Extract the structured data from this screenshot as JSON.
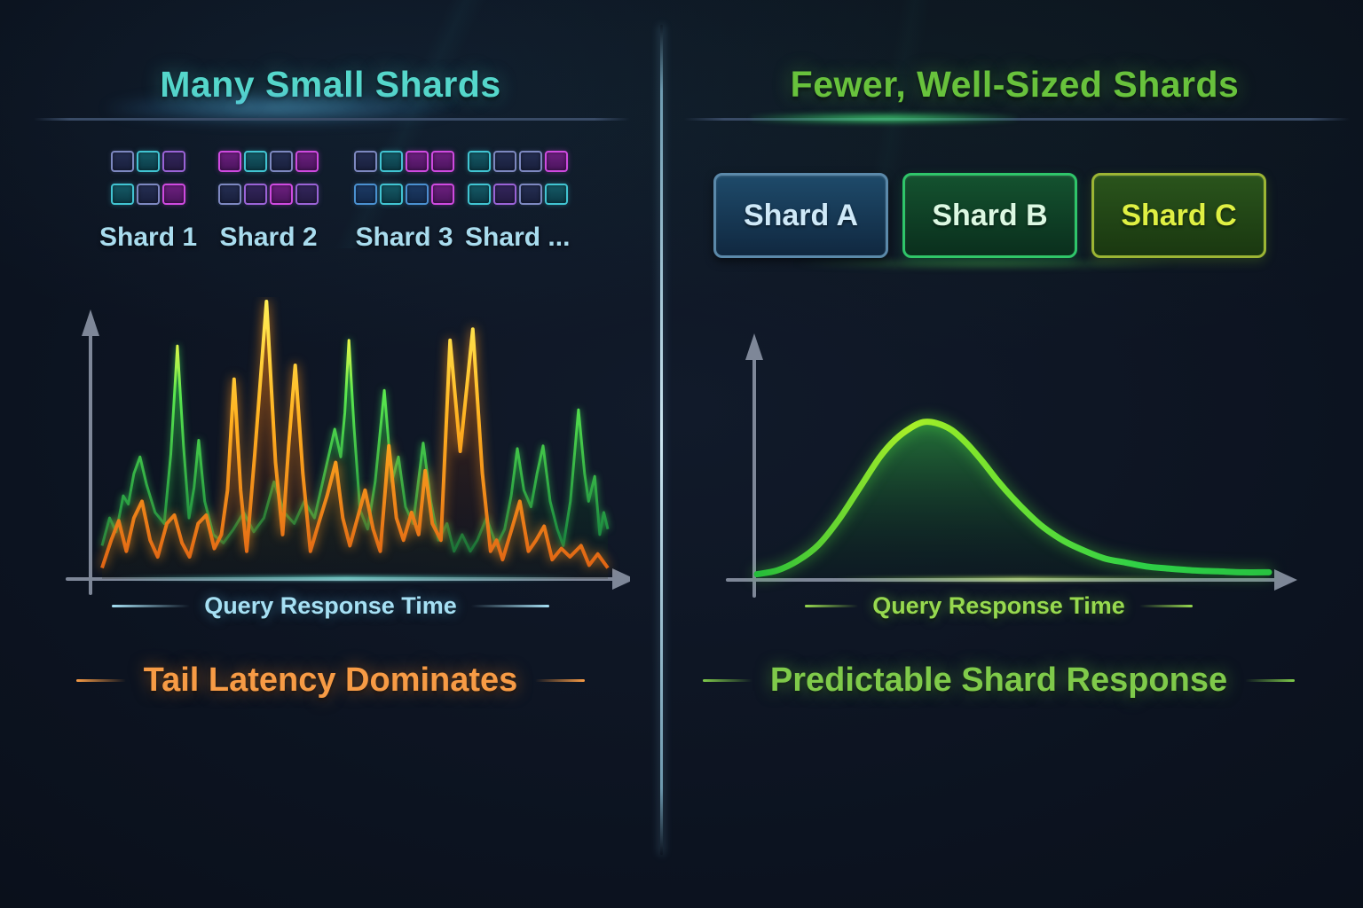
{
  "left_panel": {
    "title": "Many Small Shards",
    "shard_groups": [
      {
        "label": "Shard 1",
        "squares": [
          [
            "navy",
            "teal",
            "purple"
          ],
          [
            "teal",
            "navy",
            "magenta"
          ]
        ]
      },
      {
        "label": "Shard 2",
        "squares": [
          [
            "magenta",
            "teal",
            "navy",
            "magenta"
          ],
          [
            "navy",
            "purple",
            "magenta",
            "purple"
          ]
        ]
      },
      {
        "label": "Shard 3",
        "squares": [
          [
            "navy",
            "teal",
            "magenta",
            "magenta"
          ],
          [
            "blue",
            "teal",
            "blue",
            "magenta"
          ]
        ]
      },
      {
        "label": "Shard ...",
        "squares": [
          [
            "teal",
            "navy",
            "navy",
            "magenta"
          ],
          [
            "teal",
            "purple",
            "navy",
            "teal"
          ]
        ]
      }
    ],
    "axis_label": "Query Response Time",
    "caption": "Tail Latency Dominates"
  },
  "right_panel": {
    "title": "Fewer, Well-Sized Shards",
    "buttons": [
      {
        "label": "Shard A"
      },
      {
        "label": "Shard B"
      },
      {
        "label": "Shard C"
      }
    ],
    "axis_label": "Query Response Time",
    "caption": "Predictable Shard Response"
  },
  "colors": {
    "background": "#0c1320",
    "divider": "#cfeef8",
    "left_title": "#55d7cb",
    "right_title": "#68c23c",
    "shard_label_text": "#a9dcee",
    "left_axis_label": "#a6e0f4",
    "right_axis_label": "#97d94f",
    "left_caption": "#f79b45",
    "right_caption": "#7fca4a",
    "axis_gray": "#7e8798",
    "square_teal_border": "#41c4d2",
    "square_navy_border": "#7d88c0",
    "square_purple_border": "#9a63d6",
    "square_magenta_border": "#cf4ae0",
    "square_blue_border": "#4a90d0",
    "button_a_border": "#5b89aa",
    "button_b_border": "#2fc56a",
    "button_c_border": "#9cb534",
    "green_series": "#3ce052",
    "orange_series": "#ffb020",
    "bell_curve_stroke": "#52e02e",
    "bell_curve_peak": "#aae82a"
  },
  "chart_data": [
    {
      "type": "line",
      "title": "",
      "xlabel": "Query Response Time",
      "ylabel": "",
      "annotation": "Tail Latency Dominates",
      "x_range": [
        0,
        100
      ],
      "y_range": [
        0,
        100
      ],
      "units": "normalized-percent",
      "grid": false,
      "legend": "none",
      "series": [
        {
          "name": "green-shard-latency",
          "color": "#3ce052",
          "points": [
            [
              0,
              12
            ],
            [
              1.5,
              22
            ],
            [
              2.8,
              17
            ],
            [
              4.2,
              30
            ],
            [
              5.2,
              27
            ],
            [
              6.3,
              38
            ],
            [
              7.5,
              44
            ],
            [
              8.8,
              34
            ],
            [
              10.5,
              24
            ],
            [
              12.3,
              20
            ],
            [
              13.6,
              45
            ],
            [
              14.9,
              84
            ],
            [
              16.1,
              48
            ],
            [
              17.2,
              22
            ],
            [
              18.2,
              33
            ],
            [
              19.1,
              50
            ],
            [
              20.3,
              28
            ],
            [
              22,
              16
            ],
            [
              24,
              13
            ],
            [
              26,
              18
            ],
            [
              28,
              24
            ],
            [
              30,
              17
            ],
            [
              32,
              22
            ],
            [
              34,
              35
            ],
            [
              36,
              24
            ],
            [
              38,
              20
            ],
            [
              40,
              28
            ],
            [
              42,
              22
            ],
            [
              44,
              38
            ],
            [
              46,
              54
            ],
            [
              47.2,
              44
            ],
            [
              48,
              60
            ],
            [
              48.8,
              86
            ],
            [
              49.8,
              55
            ],
            [
              51,
              25
            ],
            [
              52.5,
              18
            ],
            [
              54,
              35
            ],
            [
              55.8,
              68
            ],
            [
              57.3,
              35
            ],
            [
              58.6,
              44
            ],
            [
              60,
              26
            ],
            [
              61.5,
              20
            ],
            [
              63.5,
              49
            ],
            [
              65,
              28
            ],
            [
              66.5,
              14
            ],
            [
              68.2,
              20
            ],
            [
              69.6,
              10
            ],
            [
              71.2,
              16
            ],
            [
              72.8,
              10
            ],
            [
              74.2,
              14
            ],
            [
              76,
              22
            ],
            [
              78,
              12
            ],
            [
              79.6,
              18
            ],
            [
              80.9,
              30
            ],
            [
              82.1,
              47
            ],
            [
              83.4,
              32
            ],
            [
              84.8,
              26
            ],
            [
              86,
              38
            ],
            [
              87.2,
              48
            ],
            [
              88.6,
              28
            ],
            [
              90,
              18
            ],
            [
              91.2,
              12
            ],
            [
              92.6,
              28
            ],
            [
              94.2,
              61
            ],
            [
              95.4,
              38
            ],
            [
              96.2,
              28
            ],
            [
              97.4,
              37
            ],
            [
              98.4,
              16
            ],
            [
              99.2,
              24
            ],
            [
              100,
              18
            ]
          ]
        },
        {
          "name": "orange-tail-latency",
          "color": "#ffb020",
          "points": [
            [
              0,
              4
            ],
            [
              1.8,
              14
            ],
            [
              3.3,
              21
            ],
            [
              4.8,
              10
            ],
            [
              6.3,
              22
            ],
            [
              7.9,
              28
            ],
            [
              9.5,
              14
            ],
            [
              11,
              8
            ],
            [
              12.8,
              20
            ],
            [
              14.3,
              23
            ],
            [
              15.8,
              13
            ],
            [
              17.3,
              8
            ],
            [
              19,
              20
            ],
            [
              20.6,
              23
            ],
            [
              22.2,
              11
            ],
            [
              23.6,
              16
            ],
            [
              24.8,
              32
            ],
            [
              26.1,
              72
            ],
            [
              27.4,
              32
            ],
            [
              28.6,
              10
            ],
            [
              30.2,
              45
            ],
            [
              32.5,
              100
            ],
            [
              34.3,
              42
            ],
            [
              35.7,
              16
            ],
            [
              36.9,
              48
            ],
            [
              38.2,
              77
            ],
            [
              39.7,
              38
            ],
            [
              41.2,
              10
            ],
            [
              42.8,
              20
            ],
            [
              44.5,
              30
            ],
            [
              46.2,
              42
            ],
            [
              47.6,
              22
            ],
            [
              49,
              12
            ],
            [
              50.5,
              22
            ],
            [
              52,
              32
            ],
            [
              53.6,
              18
            ],
            [
              55,
              10
            ],
            [
              56.7,
              48
            ],
            [
              58.2,
              22
            ],
            [
              59.6,
              14
            ],
            [
              61.2,
              24
            ],
            [
              62.6,
              16
            ],
            [
              63.9,
              39
            ],
            [
              65.3,
              20
            ],
            [
              67,
              14
            ],
            [
              68.8,
              86
            ],
            [
              70.8,
              46
            ],
            [
              73.3,
              90
            ],
            [
              75.2,
              38
            ],
            [
              76.8,
              10
            ],
            [
              78,
              14
            ],
            [
              79.2,
              7
            ],
            [
              81,
              18
            ],
            [
              82.6,
              28
            ],
            [
              84.3,
              10
            ],
            [
              85.8,
              14
            ],
            [
              87.4,
              19
            ],
            [
              89,
              7
            ],
            [
              90.8,
              11
            ],
            [
              92.5,
              8
            ],
            [
              94.7,
              12
            ],
            [
              96.3,
              5
            ],
            [
              98,
              9
            ],
            [
              100,
              4
            ]
          ]
        }
      ]
    },
    {
      "type": "area",
      "title": "",
      "xlabel": "Query Response Time",
      "ylabel": "",
      "annotation": "Predictable Shard Response",
      "x_range": [
        0,
        100
      ],
      "y_range": [
        0,
        100
      ],
      "units": "normalized-percent",
      "grid": false,
      "legend": "none",
      "series": [
        {
          "name": "shard-response-distribution",
          "color": "#52e02e",
          "points": [
            [
              0,
              2
            ],
            [
              4,
              4
            ],
            [
              8,
              9
            ],
            [
              12,
              17
            ],
            [
              16,
              30
            ],
            [
              20,
              46
            ],
            [
              24,
              62
            ],
            [
              27,
              71
            ],
            [
              30,
              77
            ],
            [
              32.5,
              80
            ],
            [
              35,
              79.5
            ],
            [
              38,
              76
            ],
            [
              41,
              69
            ],
            [
              44,
              60
            ],
            [
              47,
              50
            ],
            [
              50,
              41
            ],
            [
              53,
              33
            ],
            [
              56,
              26
            ],
            [
              60,
              19
            ],
            [
              64,
              14
            ],
            [
              68,
              10
            ],
            [
              72,
              8
            ],
            [
              76,
              6
            ],
            [
              80,
              5
            ],
            [
              85,
              4
            ],
            [
              90,
              3.5
            ],
            [
              95,
              3
            ],
            [
              100,
              3
            ]
          ]
        }
      ]
    }
  ]
}
